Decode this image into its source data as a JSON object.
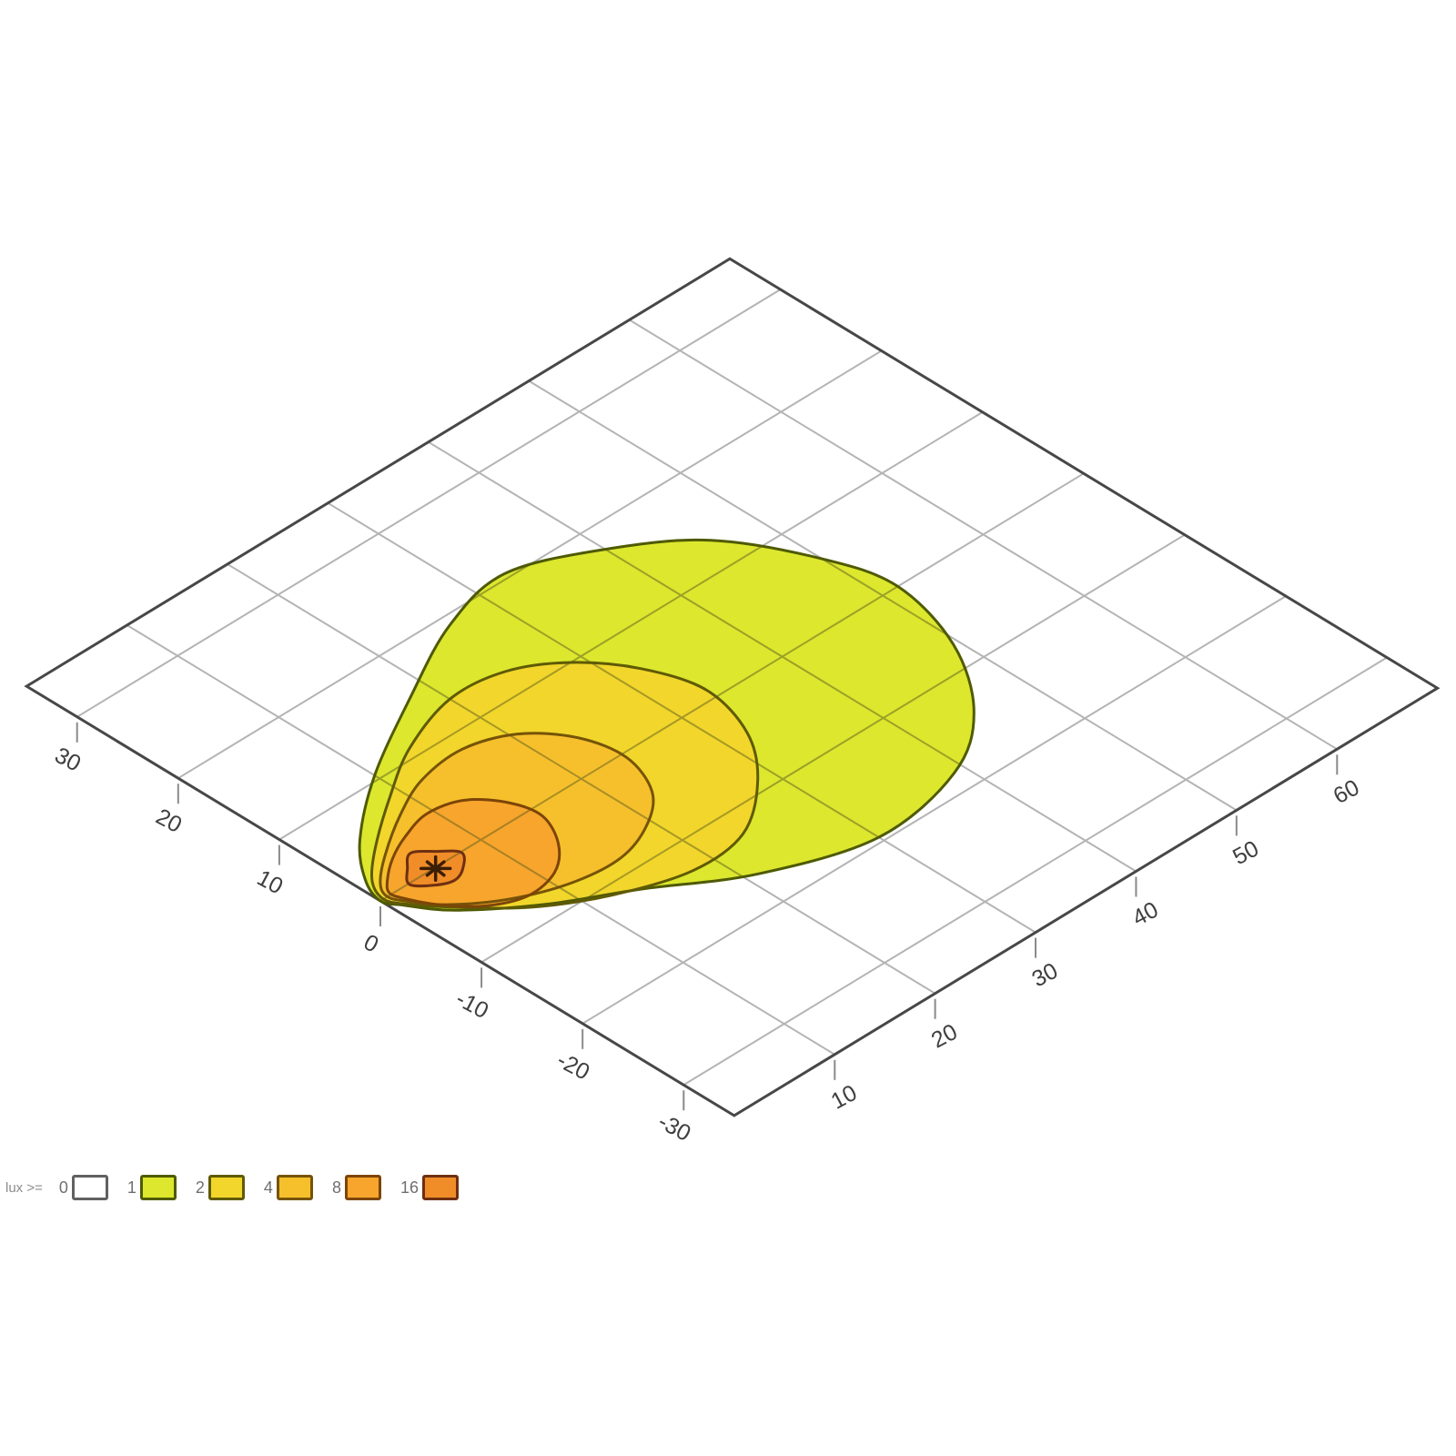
{
  "page": {
    "background": "#ffffff"
  },
  "chart_data": {
    "type": "contour",
    "title": "",
    "unit": "lux",
    "axes": {
      "left": {
        "ticks": [
          "30",
          "20",
          "10",
          "0",
          "-10",
          "-20",
          "-30"
        ],
        "range_units": [
          -35,
          35
        ]
      },
      "right": {
        "ticks": [
          "10",
          "20",
          "30",
          "40",
          "50",
          "60"
        ],
        "range_units": [
          0,
          70
        ]
      }
    },
    "grid": {
      "u_lines": [
        10,
        20,
        30,
        40,
        50,
        60
      ],
      "v_lines": [
        30,
        20,
        10,
        0,
        -10,
        -20,
        -30
      ]
    },
    "colors": {
      "border": "#474747",
      "grid": "#b4b4b4",
      "grid_over_fill": "#5c5c1e",
      "tick": "#8a8a8a",
      "tick_label": "#3f3f3f",
      "hotspot": "#3c1e04"
    },
    "hotspot": {
      "u": 5.4,
      "v": -0.1
    },
    "levels": [
      {
        "lux": 1,
        "fill": "#dce72e",
        "stroke": "#4f5a04",
        "points": [
          [
            0,
            0
          ],
          [
            1,
            2.5
          ],
          [
            4,
            6
          ],
          [
            10,
            10.5
          ],
          [
            18,
            15
          ],
          [
            26,
            19
          ],
          [
            33,
            20.5
          ],
          [
            40,
            17.5
          ],
          [
            46,
            13
          ],
          [
            50,
            6
          ],
          [
            51.5,
            0
          ],
          [
            49.5,
            -7.5
          ],
          [
            45,
            -14
          ],
          [
            39,
            -18
          ],
          [
            30,
            -19.5
          ],
          [
            21,
            -16.5
          ],
          [
            14,
            -12
          ],
          [
            8,
            -8.5
          ],
          [
            3,
            -4.5
          ],
          [
            0.8,
            -1.5
          ]
        ]
      },
      {
        "lux": 2,
        "fill": "#f2d62b",
        "stroke": "#5f5a06",
        "points": [
          [
            0.3,
            0
          ],
          [
            1.2,
            2
          ],
          [
            4,
            4.5
          ],
          [
            9,
            8
          ],
          [
            14,
            11
          ],
          [
            20,
            13
          ],
          [
            25,
            12.5
          ],
          [
            29,
            10
          ],
          [
            32,
            6
          ],
          [
            33.5,
            1
          ],
          [
            32,
            -4.5
          ],
          [
            28.5,
            -9
          ],
          [
            23.5,
            -12.5
          ],
          [
            18,
            -13
          ],
          [
            12,
            -11
          ],
          [
            7,
            -8
          ],
          [
            3,
            -4
          ],
          [
            1,
            -1.5
          ]
        ]
      },
      {
        "lux": 4,
        "fill": "#f6c02c",
        "stroke": "#755308",
        "points": [
          [
            0.7,
            0.1
          ],
          [
            1.5,
            1.5
          ],
          [
            4,
            3.5
          ],
          [
            8,
            6
          ],
          [
            12,
            7.8
          ],
          [
            16.5,
            8.3
          ],
          [
            20.5,
            6.8
          ],
          [
            23.2,
            3.5
          ],
          [
            24,
            -0.5
          ],
          [
            22.5,
            -4.5
          ],
          [
            19.5,
            -7
          ],
          [
            15.5,
            -8.4
          ],
          [
            11,
            -8
          ],
          [
            6.5,
            -6.2
          ],
          [
            3,
            -3.6
          ],
          [
            1.2,
            -1.2
          ]
        ]
      },
      {
        "lux": 8,
        "fill": "#f7a52c",
        "stroke": "#7c4508",
        "points": [
          [
            1.1,
            0.2
          ],
          [
            2,
            1.3
          ],
          [
            4,
            2.8
          ],
          [
            6.5,
            4
          ],
          [
            9.5,
            4.8
          ],
          [
            12.5,
            4
          ],
          [
            14.5,
            1.5
          ],
          [
            15,
            -1.2
          ],
          [
            13.5,
            -4.2
          ],
          [
            11,
            -6.3
          ],
          [
            7.8,
            -6.9
          ],
          [
            4.8,
            -5.6
          ],
          [
            2.6,
            -3.2
          ],
          [
            1.4,
            -1
          ]
        ]
      },
      {
        "lux": 16,
        "fill": "#f08d28",
        "stroke": "#6e2f12",
        "points": [
          [
            8,
            -0.1
          ],
          [
            6.8,
            1.3
          ],
          [
            5.4,
            2.4
          ],
          [
            4,
            1.3
          ],
          [
            2.8,
            -0.1
          ],
          [
            4.05,
            -1.45
          ],
          [
            5.4,
            -2
          ],
          [
            6.75,
            -1.45
          ]
        ]
      }
    ],
    "legend": {
      "label": "lux >=",
      "items": [
        {
          "value": "0",
          "fill": "#ffffff",
          "border": "#616161"
        },
        {
          "value": "1",
          "fill": "#dce72e",
          "border": "#4f5a04"
        },
        {
          "value": "2",
          "fill": "#f2d62b",
          "border": "#5f5a06"
        },
        {
          "value": "4",
          "fill": "#f6c02c",
          "border": "#755308"
        },
        {
          "value": "8",
          "fill": "#f7a52c",
          "border": "#7c4508"
        },
        {
          "value": "16",
          "fill": "#f08d28",
          "border": "#6e2f12"
        }
      ]
    }
  }
}
